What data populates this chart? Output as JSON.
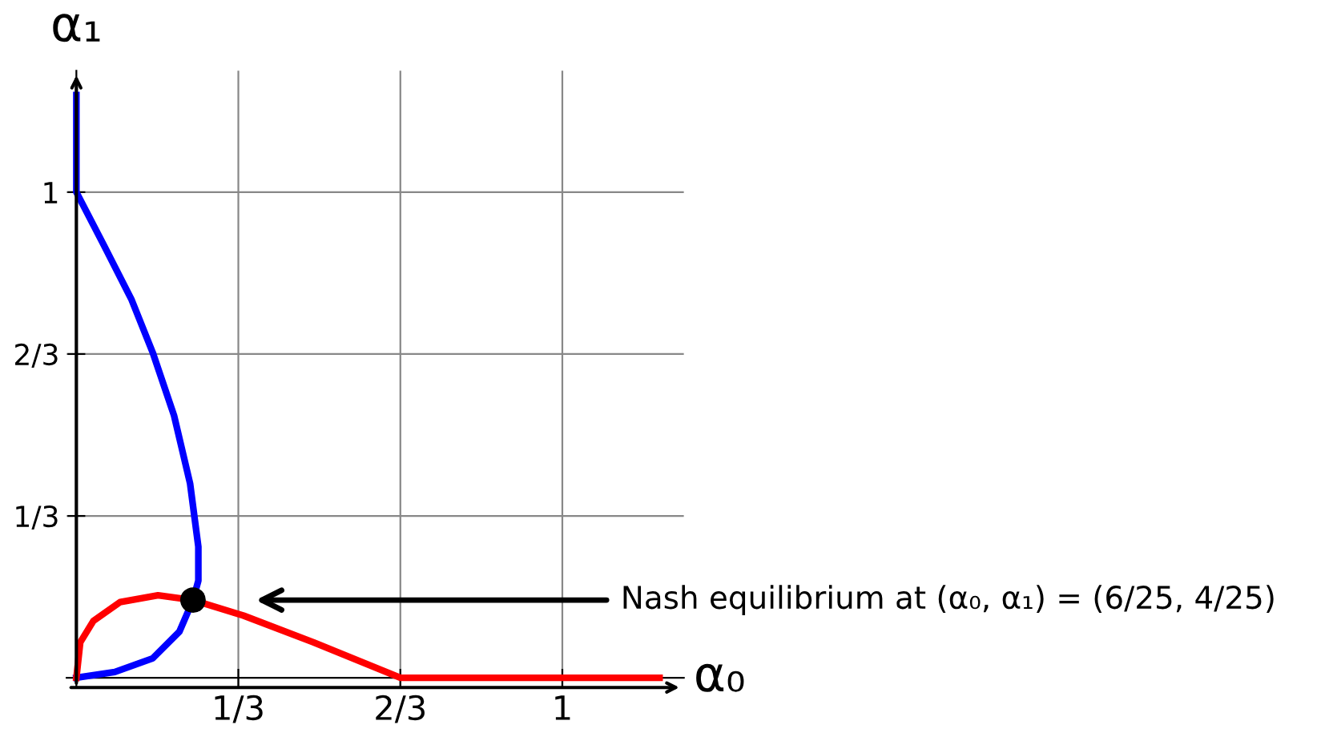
{
  "chart_data": {
    "type": "line",
    "xlabel": "α₀",
    "ylabel": "α₁",
    "series": [
      {
        "color": "#0000ff",
        "x": [
          0,
          0,
          0.057,
          0.113,
          0.157,
          0.201,
          0.234,
          0.251,
          0.251,
          0.24,
          0.212,
          0.157,
          0.079,
          0
        ],
        "values": [
          1.2,
          1,
          0.89,
          0.78,
          0.67,
          0.54,
          0.4,
          0.27,
          0.2,
          0.16,
          0.095,
          0.04,
          0.012,
          0
        ]
      },
      {
        "color": "#ff0000",
        "x": [
          0,
          0.008,
          0.035,
          0.09,
          0.168,
          0.24,
          0.344,
          0.488,
          0.667,
          1.2
        ],
        "values": [
          0,
          0.073,
          0.117,
          0.156,
          0.17,
          0.16,
          0.128,
          0.073,
          0,
          0
        ]
      },
      {
        "type": "scatter",
        "marker": "circle",
        "color": "#000000",
        "x": [
          0.24
        ],
        "values": [
          0.16
        ]
      }
    ],
    "annotations": [
      "Nash equilibrium at (α₀, α₁) = (6/25, 4/25)"
    ],
    "xlim": [
      -0.02,
      1.25
    ],
    "ylim": [
      -0.02,
      1.25
    ],
    "xticks": [
      {
        "value": 0.3333,
        "label": "1/3"
      },
      {
        "value": 0.6667,
        "label": "2/3"
      },
      1
    ],
    "yticks": [
      {
        "value": 0.3333,
        "label": "1/3"
      },
      {
        "value": 0.6667,
        "label": "2/3"
      },
      1
    ],
    "grid": true,
    "marker": "none",
    "line_style": "solid"
  }
}
